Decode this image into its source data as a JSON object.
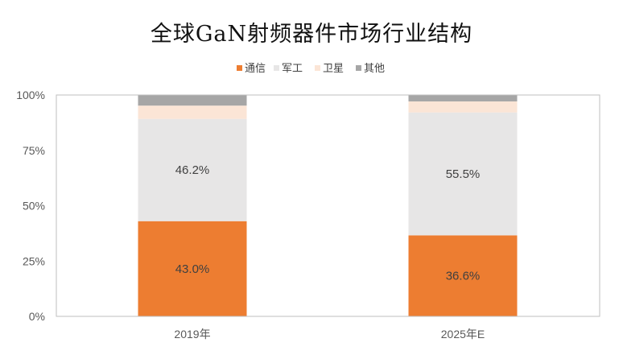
{
  "chart_data": {
    "type": "bar",
    "stacked": true,
    "normalized": true,
    "title": "全球GaN射频器件市场行业结构",
    "categories": [
      "2019年",
      "2025年E"
    ],
    "series": [
      {
        "name": "通信",
        "color": "#ED7D31",
        "values": [
          43.0,
          36.6
        ],
        "labels": [
          "43.0%",
          "36.6%"
        ]
      },
      {
        "name": "军工",
        "color": "#E7E6E6",
        "values": [
          46.2,
          55.5
        ],
        "labels": [
          "46.2%",
          "55.5%"
        ]
      },
      {
        "name": "卫星",
        "color": "#FBE5D6",
        "values": [
          6.0,
          5.0
        ],
        "labels": [
          "",
          ""
        ]
      },
      {
        "name": "其他",
        "color": "#A6A6A6",
        "values": [
          4.8,
          2.9
        ],
        "labels": [
          "",
          ""
        ]
      }
    ],
    "ylim": [
      0,
      100
    ],
    "yticks": [
      0,
      25,
      50,
      75,
      100
    ],
    "ytick_labels": [
      "0%",
      "25%",
      "50%",
      "75%",
      "100%"
    ],
    "xlabel": "",
    "ylabel": "",
    "grid": false,
    "legend_position": "top"
  }
}
